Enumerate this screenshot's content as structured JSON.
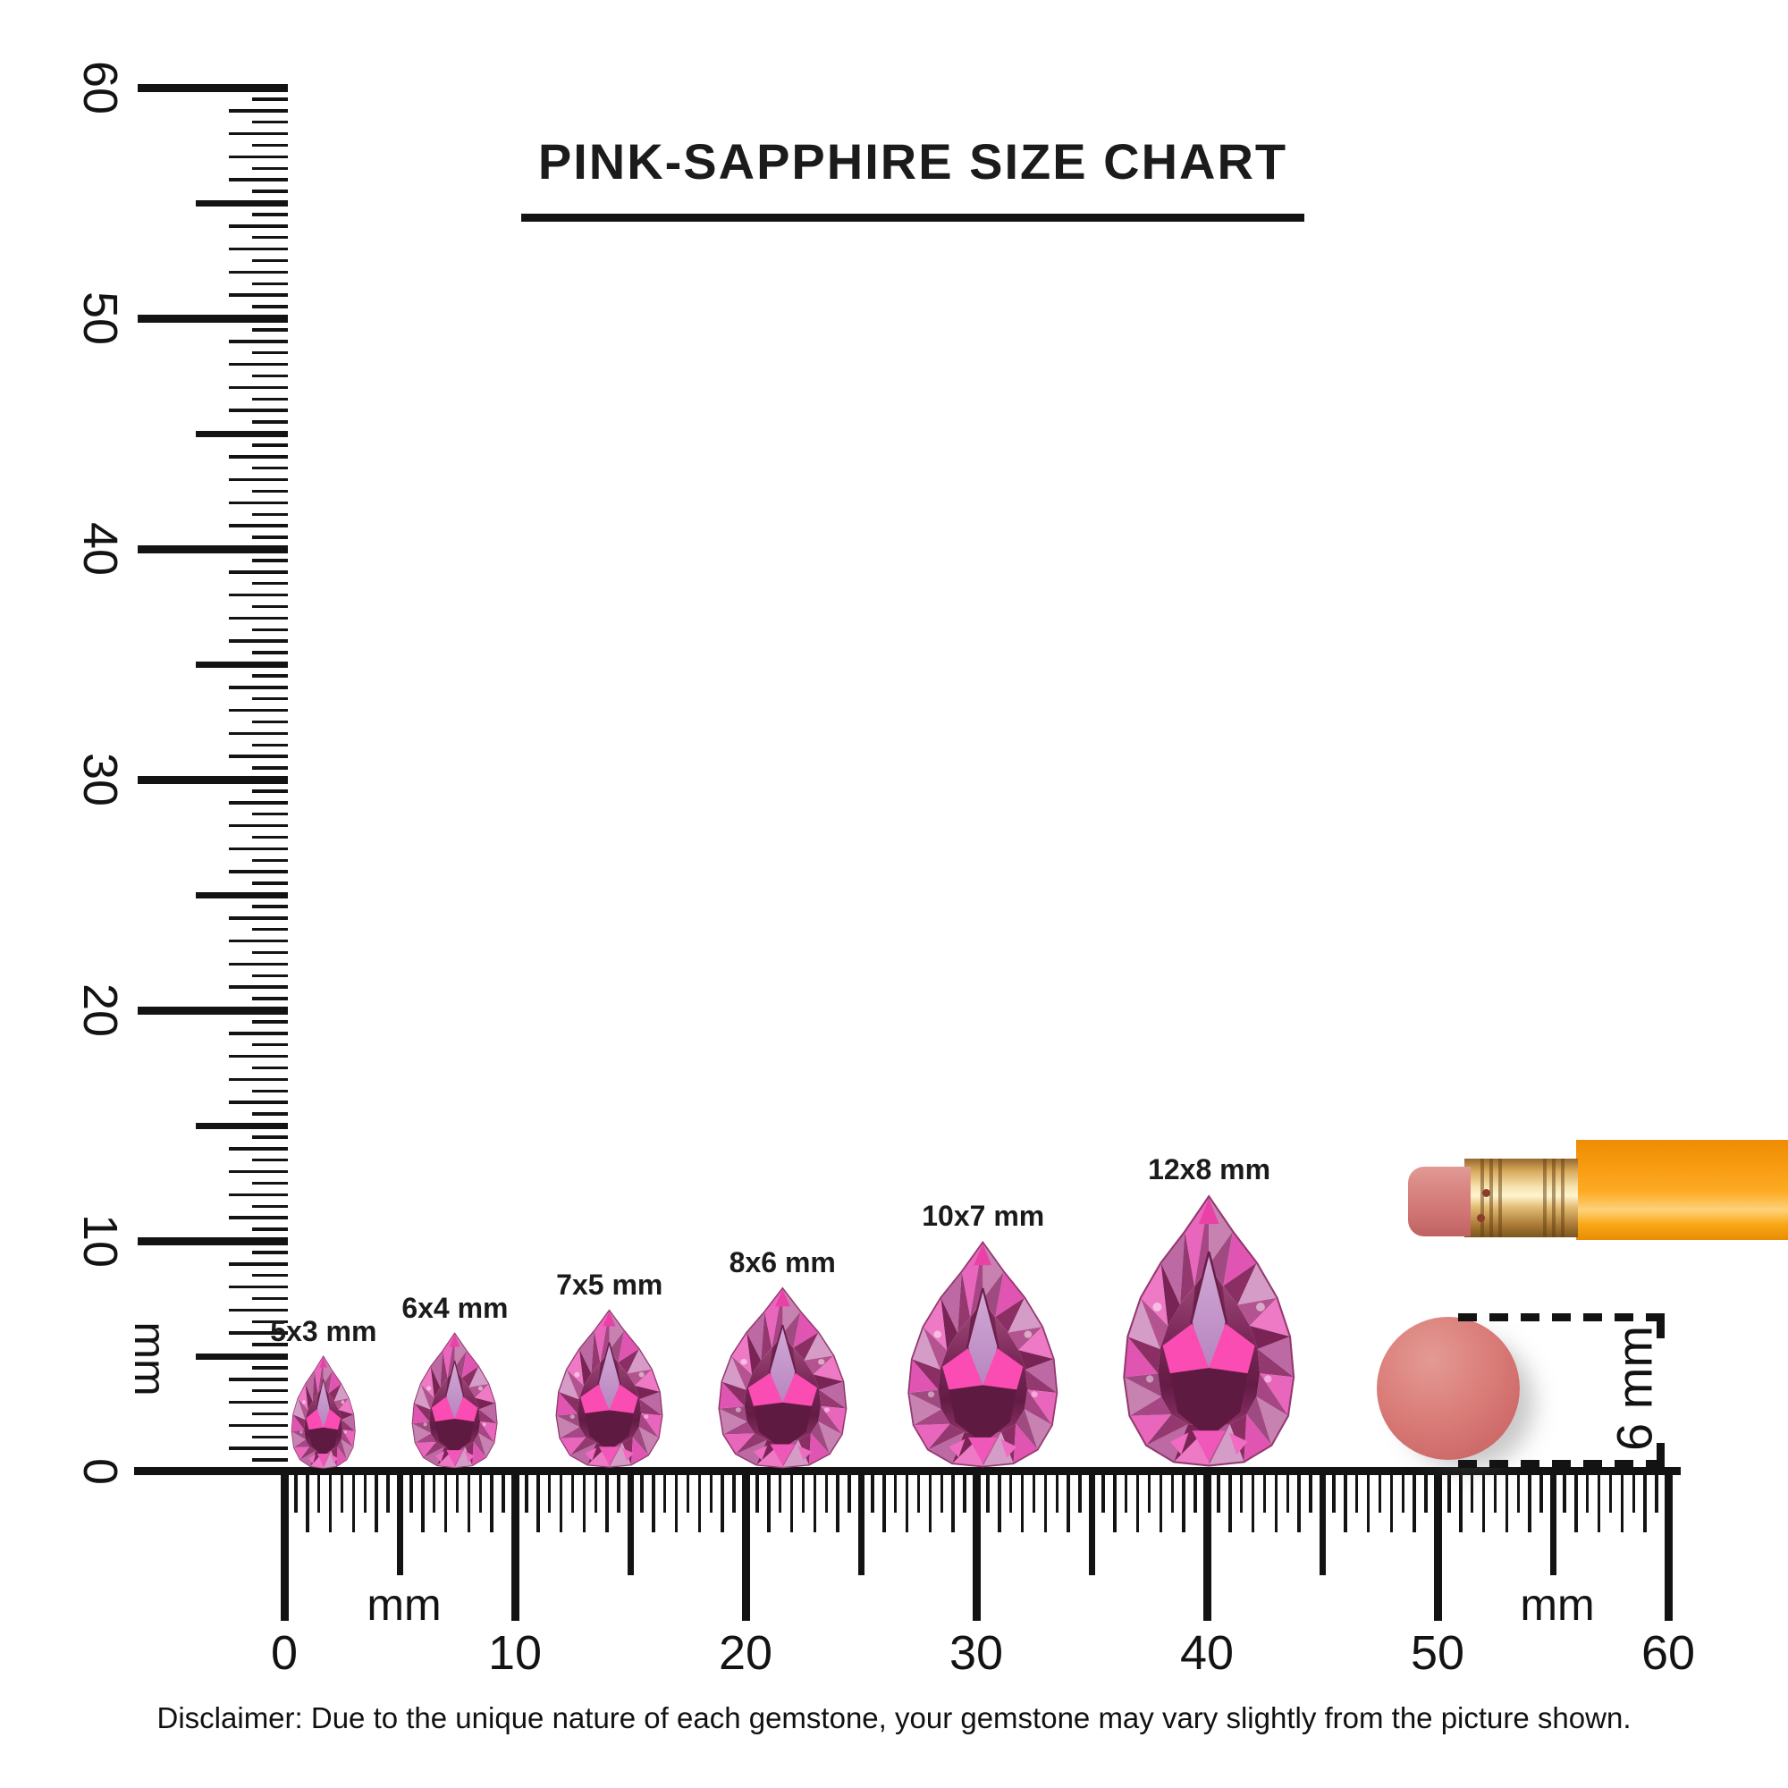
{
  "title": "PINK-SAPPHIRE SIZE CHART",
  "rulers": {
    "horizontal": {
      "labels": [
        "0",
        "10",
        "20",
        "30",
        "40",
        "50",
        "60"
      ],
      "unit_left": "mm",
      "unit_right": "mm",
      "range_mm": [
        0,
        60
      ]
    },
    "vertical": {
      "labels": [
        "0",
        "10",
        "20",
        "30",
        "40",
        "50",
        "60"
      ],
      "unit": "mm",
      "range_mm": [
        0,
        60
      ]
    }
  },
  "gems": [
    {
      "label": "5x3 mm",
      "length_mm": 5,
      "width_mm": 3,
      "center_mm": 1.7
    },
    {
      "label": "6x4 mm",
      "length_mm": 6,
      "width_mm": 4,
      "center_mm": 7.4
    },
    {
      "label": "7x5 mm",
      "length_mm": 7,
      "width_mm": 5,
      "center_mm": 14.1
    },
    {
      "label": "8x6 mm",
      "length_mm": 8,
      "width_mm": 6,
      "center_mm": 21.6
    },
    {
      "label": "10x7 mm",
      "length_mm": 10,
      "width_mm": 7,
      "center_mm": 30.3
    },
    {
      "label": "12x8 mm",
      "length_mm": 12,
      "width_mm": 8,
      "center_mm": 40.1
    }
  ],
  "eraser_annotation": {
    "label": "6 mm",
    "diameter_mm": 6
  },
  "disclaimer": "Disclaimer: Due to the unique nature of each gemstone, your gemstone may vary slightly from the picture shown.",
  "colors": {
    "ink": "#131313",
    "gem_bright": "#fb4cb3",
    "gem_light": "#d49cc7",
    "gem_dark": "#5e1a41",
    "pencil_body": "#f89c12",
    "pencil_ferrule": "#d9ab5e",
    "pencil_eraser": "#d88481",
    "eraser_circle": "#d06e6d"
  },
  "chart_data": {
    "type": "table",
    "title": "PINK-SAPPHIRE SIZE CHART",
    "categories": [
      "5x3 mm",
      "6x4 mm",
      "7x5 mm",
      "8x6 mm",
      "10x7 mm",
      "12x8 mm"
    ],
    "series": [
      {
        "name": "length_mm",
        "values": [
          5,
          6,
          7,
          8,
          10,
          12
        ]
      },
      {
        "name": "width_mm",
        "values": [
          3,
          4,
          5,
          6,
          7,
          8
        ]
      }
    ],
    "x_ruler": {
      "unit": "mm",
      "range": [
        0,
        60
      ],
      "tick_step_mm": 0.5,
      "label_step_mm": 10
    },
    "y_ruler": {
      "unit": "mm",
      "range": [
        0,
        60
      ],
      "tick_step_mm": 0.5,
      "label_step_mm": 10
    },
    "reference_object": {
      "label": "6 mm",
      "description": "pencil eraser end circle"
    }
  }
}
